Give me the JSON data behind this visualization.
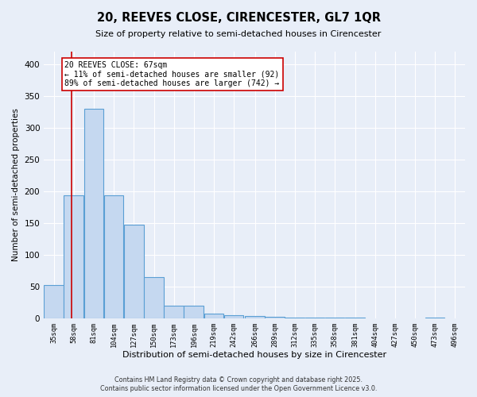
{
  "title": "20, REEVES CLOSE, CIRENCESTER, GL7 1QR",
  "subtitle": "Size of property relative to semi-detached houses in Cirencester",
  "xlabel": "Distribution of semi-detached houses by size in Cirencester",
  "ylabel": "Number of semi-detached properties",
  "bin_edges": [
    35,
    58,
    81,
    104,
    127,
    150,
    173,
    196,
    219,
    242,
    266,
    289,
    312,
    335,
    358,
    381,
    404,
    427,
    450,
    473,
    496
  ],
  "bar_heights": [
    52,
    193,
    330,
    193,
    147,
    65,
    20,
    20,
    7,
    5,
    3,
    2,
    1,
    1,
    1,
    1,
    0,
    0,
    0,
    1
  ],
  "bar_color": "#c5d8f0",
  "bar_edge_color": "#5a9fd4",
  "property_size": 67,
  "annotation_line1": "20 REEVES CLOSE: 67sqm",
  "annotation_line2": "← 11% of semi-detached houses are smaller (92)",
  "annotation_line3": "89% of semi-detached houses are larger (742) →",
  "red_line_color": "#cc0000",
  "annotation_box_facecolor": "#ffffff",
  "annotation_box_edgecolor": "#cc0000",
  "ylim": [
    0,
    420
  ],
  "yticks": [
    0,
    50,
    100,
    150,
    200,
    250,
    300,
    350,
    400
  ],
  "footer1": "Contains HM Land Registry data © Crown copyright and database right 2025.",
  "footer2": "Contains public sector information licensed under the Open Government Licence v3.0.",
  "bg_color": "#e8eef8",
  "plot_bg_color": "#e8eef8"
}
